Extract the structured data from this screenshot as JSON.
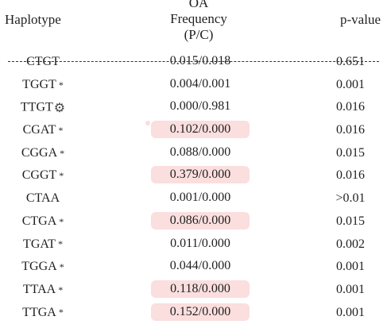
{
  "header": {
    "haplotype": "Haplotype",
    "frequency_line1": "OA",
    "frequency_line2": "Frequency",
    "frequency_line3": "(P/C)",
    "pvalue": "p-value"
  },
  "colors": {
    "highlight": "#fbdede",
    "text": "#1f1f1f"
  },
  "rows": [
    {
      "haplotype": "CTGT",
      "mark": "",
      "frequency": "0.015/0.018",
      "pvalue": "0.651",
      "struck": true,
      "highlight": false
    },
    {
      "haplotype": "TGGT",
      "mark": "*",
      "frequency": "0.004/0.001",
      "pvalue": "0.001",
      "struck": false,
      "highlight": false
    },
    {
      "haplotype": "TTGT",
      "mark": "gear",
      "frequency": "0.000/0.981",
      "pvalue": "0.016",
      "struck": false,
      "highlight": false
    },
    {
      "haplotype": "CGAT",
      "mark": "*",
      "frequency": "0.102/0.000",
      "pvalue": "0.016",
      "struck": false,
      "highlight": true
    },
    {
      "haplotype": "CGGA",
      "mark": "*",
      "frequency": "0.088/0.000",
      "pvalue": "0.015",
      "struck": false,
      "highlight": false
    },
    {
      "haplotype": "CGGT",
      "mark": "*",
      "frequency": "0.379/0.000",
      "pvalue": "0.016",
      "struck": false,
      "highlight": true
    },
    {
      "haplotype": "CTAA",
      "mark": "",
      "frequency": "0.001/0.000",
      "pvalue": ">0.01",
      "struck": false,
      "highlight": false
    },
    {
      "haplotype": "CTGA",
      "mark": "*",
      "frequency": "0.086/0.000",
      "pvalue": "0.015",
      "struck": false,
      "highlight": true
    },
    {
      "haplotype": "TGAT",
      "mark": "*",
      "frequency": "0.011/0.000",
      "pvalue": "0.002",
      "struck": false,
      "highlight": false
    },
    {
      "haplotype": "TGGA",
      "mark": "*",
      "frequency": "0.044/0.000",
      "pvalue": "0.001",
      "struck": false,
      "highlight": false
    },
    {
      "haplotype": "TTAA",
      "mark": "*",
      "frequency": "0.118/0.000",
      "pvalue": "0.001",
      "struck": false,
      "highlight": true
    },
    {
      "haplotype": "TTGA",
      "mark": "*",
      "frequency": "0.152/0.000",
      "pvalue": "0.001",
      "struck": false,
      "highlight": true
    }
  ]
}
